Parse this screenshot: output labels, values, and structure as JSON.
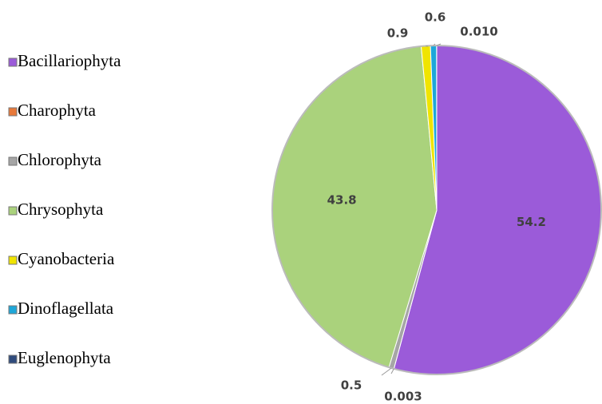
{
  "chart_data": {
    "type": "pie",
    "categories": [
      "Bacillariophyta",
      "Charophyta",
      "Chlorophyta",
      "Chrysophyta",
      "Cyanobacteria",
      "Dinoflagellata",
      "Euglenophyta"
    ],
    "values": [
      54.2,
      0.003,
      0.5,
      43.8,
      0.9,
      0.6,
      0.01
    ],
    "value_labels": [
      "54.2",
      "0.003",
      "0.5",
      "43.8",
      "0.9",
      "0.6",
      "0.010"
    ],
    "colors": [
      "#9b5bd9",
      "#e8793a",
      "#a6a6a6",
      "#aad27c",
      "#f0e400",
      "#1ea7d9",
      "#2f4b7c"
    ],
    "legend": "left"
  }
}
